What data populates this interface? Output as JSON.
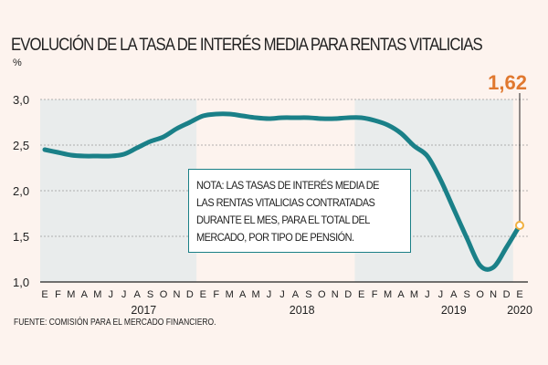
{
  "chart_data": {
    "type": "line",
    "title": "EVOLUCIÓN DE LA TASA DE INTERÉS MEDIA PARA RENTAS VITALICIAS",
    "ylabel": "%",
    "ylim": [
      1.0,
      3.0
    ],
    "yticks": [
      "1,0",
      "1,5",
      "2,0",
      "2,5",
      "3,0"
    ],
    "ytick_values": [
      1.0,
      1.5,
      2.0,
      2.5,
      3.0
    ],
    "grid": true,
    "month_labels": [
      "E",
      "F",
      "M",
      "A",
      "M",
      "J",
      "J",
      "A",
      "S",
      "O",
      "N",
      "D",
      "E",
      "F",
      "M",
      "A",
      "M",
      "J",
      "J",
      "A",
      "S",
      "O",
      "N",
      "D",
      "E",
      "F",
      "M",
      "A",
      "M",
      "J",
      "J",
      "A",
      "S",
      "O",
      "N",
      "D",
      "E"
    ],
    "year_labels": [
      "2017",
      "2018",
      "2019",
      "2020"
    ],
    "values": [
      2.45,
      2.42,
      2.39,
      2.38,
      2.38,
      2.38,
      2.4,
      2.47,
      2.54,
      2.59,
      2.68,
      2.75,
      2.82,
      2.84,
      2.84,
      2.82,
      2.8,
      2.79,
      2.8,
      2.8,
      2.8,
      2.79,
      2.79,
      2.8,
      2.8,
      2.77,
      2.72,
      2.63,
      2.49,
      2.38,
      2.12,
      1.8,
      1.48,
      1.18,
      1.16,
      1.38,
      1.62
    ],
    "last_value_label": "1,62",
    "note": "NOTA: LAS TASAS DE INTERÉS MEDIA DE LAS RENTAS VITALICIAS CONTRATADAS DURANTE EL MES, PARA EL TOTAL DEL MERCADO, POR TIPO DE PENSIÓN.",
    "note_lines": [
      "NOTA: LAS TASAS DE INTERÉS MEDIA DE",
      "LAS RENTAS VITALICIAS CONTRATADAS",
      "DURANTE EL MES, PARA EL TOTAL DEL",
      "MERCADO, POR TIPO DE PENSIÓN."
    ],
    "source": "FUENTE: COMISIÓN PARA EL MERCADO FINANCIERO.",
    "colors": {
      "line": "#1a8088",
      "highlight": "#e0782f",
      "marker": "#f0b040",
      "band": "#e9ecec",
      "background": "#fdf3ee"
    }
  }
}
